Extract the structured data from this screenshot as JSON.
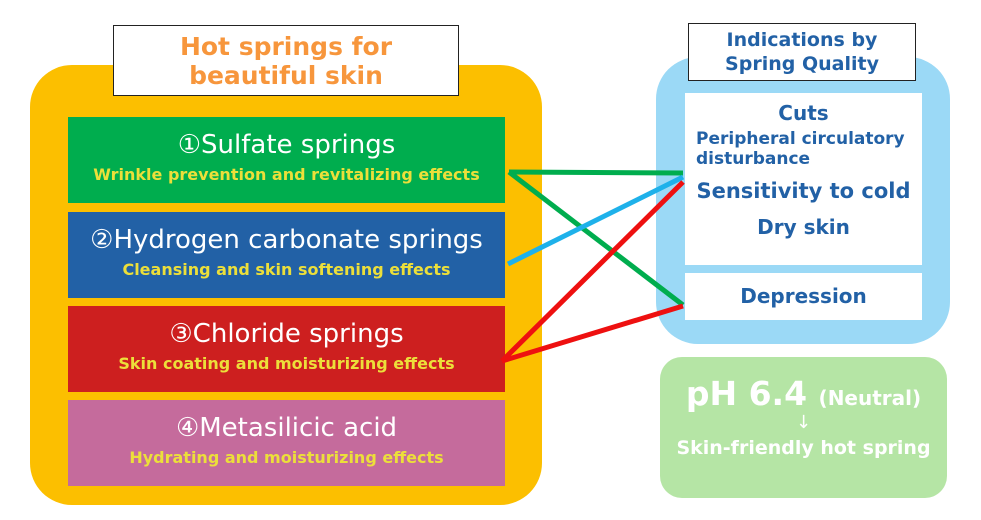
{
  "left": {
    "title": "Hot springs for beautiful skin",
    "springs": [
      {
        "name": "①Sulfate springs",
        "effect": "Wrinkle prevention and revitalizing effects",
        "color": "#00ad4e"
      },
      {
        "name": "②Hydrogen carbonate springs",
        "effect": "Cleansing and skin softening effects",
        "color": "#2261a6"
      },
      {
        "name": "③Chloride springs",
        "effect": "Skin coating and moisturizing effects",
        "color": "#cd1f1f"
      },
      {
        "name": "④Metasilicic acid",
        "effect": "Hydrating and moisturizing effects",
        "color": "#c56b9c"
      }
    ]
  },
  "right": {
    "title": "Indications by Spring Quality",
    "indications": [
      "Cuts",
      "Peripheral circulatory disturbance",
      "Sensitivity to cold",
      "Dry skin"
    ],
    "indication2": "Depression"
  },
  "ph": {
    "value": "pH 6.4",
    "label": "(Neutral)",
    "arrow": "↓",
    "result": "Skin-friendly hot spring"
  },
  "connections": [
    {
      "from": "Sulfate springs",
      "to": "Indications group 1",
      "color": "#00ad4e"
    },
    {
      "from": "Sulfate springs",
      "to": "Depression",
      "color": "#00ad4e"
    },
    {
      "from": "Hydrogen carbonate springs",
      "to": "Indications group 1",
      "color": "#1eb1ea"
    },
    {
      "from": "Chloride springs",
      "to": "Indications group 1",
      "color": "#ee1010"
    },
    {
      "from": "Chloride springs",
      "to": "Depression",
      "color": "#ee1010"
    }
  ]
}
